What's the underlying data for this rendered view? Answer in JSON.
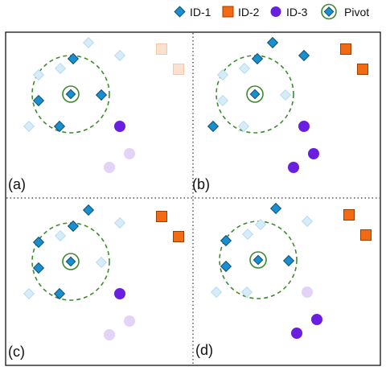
{
  "legend": {
    "items": [
      {
        "key": "id1",
        "label": "ID-1",
        "shape": "diamond",
        "color": "#1a8fd0"
      },
      {
        "key": "id2",
        "label": "ID-2",
        "shape": "square",
        "color": "#f26b12"
      },
      {
        "key": "id3",
        "label": "ID-3",
        "shape": "circle",
        "color": "#6a1ee0"
      },
      {
        "key": "pivot",
        "label": "Pivot",
        "shape": "pivot",
        "color": "#1a8fd0",
        "ring_color": "#3d8b2f"
      }
    ]
  },
  "panels": [
    {
      "label": "(a)",
      "id1": [
        [
          0,
          0,
          1
        ],
        [
          0,
          -1,
          1
        ],
        [
          0,
          1,
          1
        ]
      ],
      "id2": [
        0,
        0
      ],
      "id3": [
        1,
        0,
        0
      ]
    },
    {
      "label": "(b)",
      "id1": [
        [
          1,
          1,
          1
        ],
        [
          0,
          0,
          0
        ],
        [
          1,
          0,
          0
        ]
      ],
      "id2": [
        1,
        1
      ],
      "id3": [
        1,
        1,
        1
      ]
    },
    {
      "label": "(c)",
      "id1": [
        [
          1,
          0,
          1
        ],
        [
          1,
          0,
          0
        ],
        [
          0,
          1,
          1
        ]
      ],
      "id2": [
        1,
        1
      ],
      "id3": [
        1,
        0,
        0
      ]
    },
    {
      "label": "(d)",
      "id1": [
        [
          1,
          0,
          0
        ],
        [
          1,
          0,
          1
        ],
        [
          0,
          1,
          0
        ]
      ],
      "id2": [
        1,
        1
      ],
      "id3": [
        0,
        1,
        1
      ]
    }
  ],
  "colors": {
    "id1": "#1a8fd0",
    "id1_faded": "#d6ecf8",
    "id2": "#f26b12",
    "id2_faded": "#fbe1d0",
    "id3": "#6a1ee0",
    "id3_faded": "#e2d3f7",
    "circle": "#3d8b2f"
  }
}
